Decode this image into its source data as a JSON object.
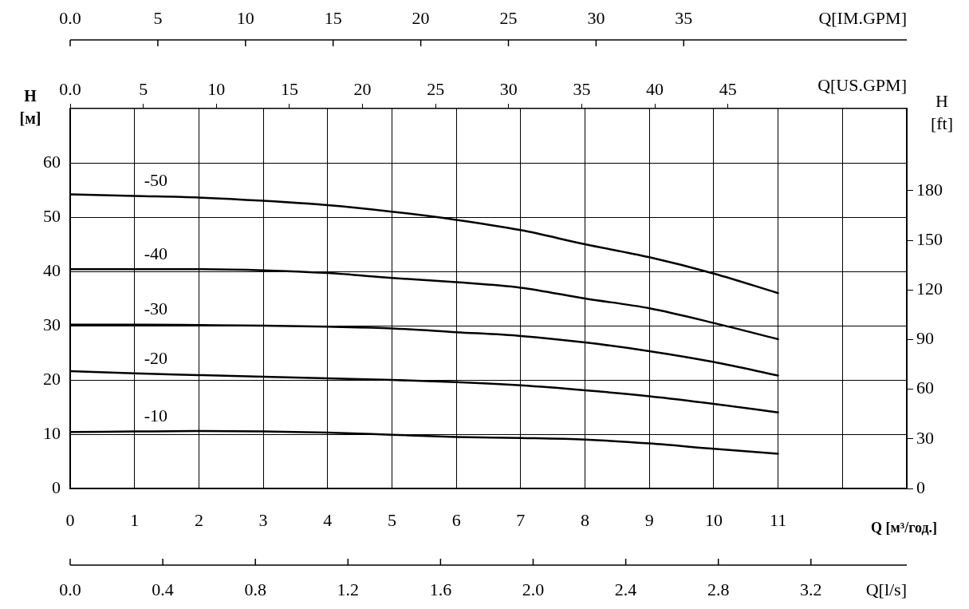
{
  "chart_data": {
    "type": "line",
    "xlabel": "Q [м³/год.]",
    "ylabel": "H [м]",
    "y2label": "H [ft]",
    "x2label": "Q[US.GPM]",
    "x": [
      0,
      1,
      2,
      3,
      4,
      5,
      6,
      7,
      8,
      9,
      10,
      11
    ],
    "xlim": [
      0,
      13
    ],
    "xticks": [
      0,
      1,
      2,
      3,
      4,
      5,
      6,
      7,
      8,
      9,
      10,
      11,
      {
        "value": 12,
        "label": null
      },
      {
        "value": 13,
        "label": null
      }
    ],
    "ylim": [
      0,
      70
    ],
    "yticks": [
      0,
      10,
      20,
      30,
      40,
      50,
      60
    ],
    "y2lim": [
      0,
      229.66
    ],
    "y2ticks": [
      0,
      30,
      60,
      90,
      120,
      150,
      180
    ],
    "x2lim": [
      0,
      57.24
    ],
    "x2ticks": [
      {
        "value": 0,
        "label": "0.0"
      },
      5,
      10,
      15,
      20,
      25,
      30,
      35,
      40,
      45
    ],
    "grid": true,
    "legend": false,
    "marker": "none",
    "line_style": "solid",
    "series": [
      {
        "name": "-50",
        "color": "#000000",
        "values": [
          54.2,
          53.9,
          53.6,
          53.0,
          52.2,
          51.0,
          49.5,
          47.6,
          45.0,
          42.6,
          39.6,
          36.0
        ]
      },
      {
        "name": "-40",
        "color": "#000000",
        "values": [
          40.4,
          40.4,
          40.4,
          40.2,
          39.7,
          38.8,
          38.0,
          37.0,
          35.0,
          33.2,
          30.5,
          27.5
        ]
      },
      {
        "name": "-30",
        "color": "#000000",
        "values": [
          30.2,
          30.2,
          30.1,
          30.0,
          29.8,
          29.5,
          28.8,
          28.1,
          26.9,
          25.3,
          23.3,
          20.8
        ]
      },
      {
        "name": "-20",
        "color": "#000000",
        "values": [
          21.6,
          21.2,
          20.9,
          20.6,
          20.3,
          20.0,
          19.6,
          19.0,
          18.1,
          17.0,
          15.6,
          14.0
        ]
      },
      {
        "name": "-10",
        "color": "#000000",
        "values": [
          10.4,
          10.5,
          10.6,
          10.5,
          10.3,
          9.9,
          9.5,
          9.3,
          9.0,
          8.3,
          7.3,
          6.4
        ]
      }
    ],
    "annotations": [
      "0.0",
      "5",
      "10",
      "15",
      "20",
      "25",
      "30",
      "35",
      "Q[IM.GPM]",
      "0.0",
      "0.4",
      "0.8",
      "1.2",
      "1.6",
      "2.0",
      "2.4",
      "2.8",
      "3.2",
      "Q[l/s]"
    ]
  }
}
